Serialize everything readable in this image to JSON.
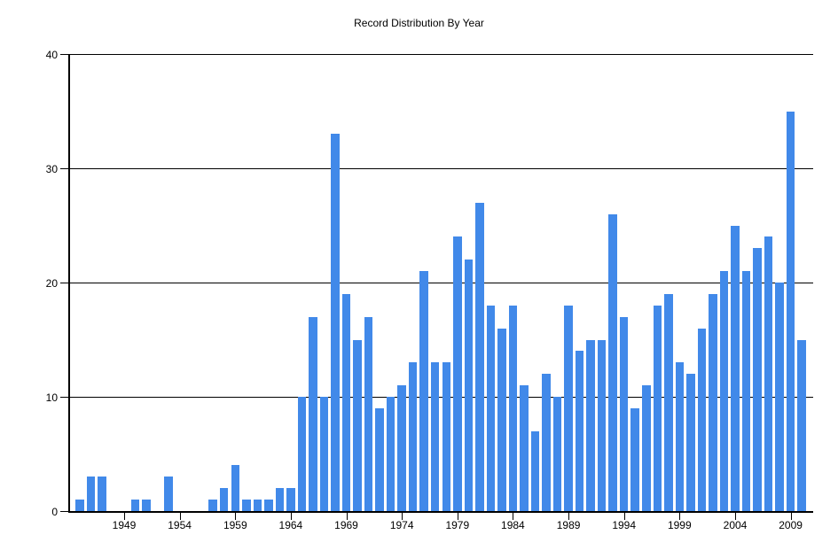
{
  "chart_data": {
    "type": "bar",
    "title": "Record Distribution By Year",
    "xlabel": "",
    "ylabel": "",
    "ylim": [
      0,
      40
    ],
    "y_ticks": [
      0,
      10,
      20,
      30,
      40
    ],
    "x_tick_labels": [
      "1949",
      "1954",
      "1959",
      "1964",
      "1969",
      "1974",
      "1979",
      "1984",
      "1989",
      "1994",
      "1999",
      "2004",
      "2009"
    ],
    "grid": "horizontal",
    "legend": "none",
    "bar_color": "#4189E9",
    "axis_color": "#000000",
    "background_color": "#FFFFFF",
    "categories": [
      1945,
      1946,
      1947,
      1948,
      1949,
      1950,
      1951,
      1952,
      1953,
      1954,
      1955,
      1956,
      1957,
      1958,
      1959,
      1960,
      1961,
      1962,
      1963,
      1964,
      1965,
      1966,
      1967,
      1968,
      1969,
      1970,
      1971,
      1972,
      1973,
      1974,
      1975,
      1976,
      1977,
      1978,
      1979,
      1980,
      1981,
      1982,
      1983,
      1984,
      1985,
      1986,
      1987,
      1988,
      1989,
      1990,
      1991,
      1992,
      1993,
      1994,
      1995,
      1996,
      1997,
      1998,
      1999,
      2000,
      2001,
      2002,
      2003,
      2004,
      2005,
      2006,
      2007,
      2008,
      2009,
      2010
    ],
    "values": [
      1,
      3,
      3,
      0,
      0,
      1,
      1,
      0,
      3,
      0,
      0,
      0,
      1,
      2,
      4,
      1,
      1,
      1,
      2,
      2,
      10,
      17,
      10,
      33,
      19,
      15,
      17,
      9,
      10,
      11,
      13,
      21,
      13,
      13,
      24,
      22,
      27,
      18,
      16,
      18,
      11,
      7,
      12,
      10,
      18,
      14,
      15,
      15,
      26,
      17,
      9,
      11,
      18,
      19,
      13,
      12,
      16,
      19,
      21,
      25,
      21,
      23,
      24,
      20,
      35,
      15
    ]
  }
}
